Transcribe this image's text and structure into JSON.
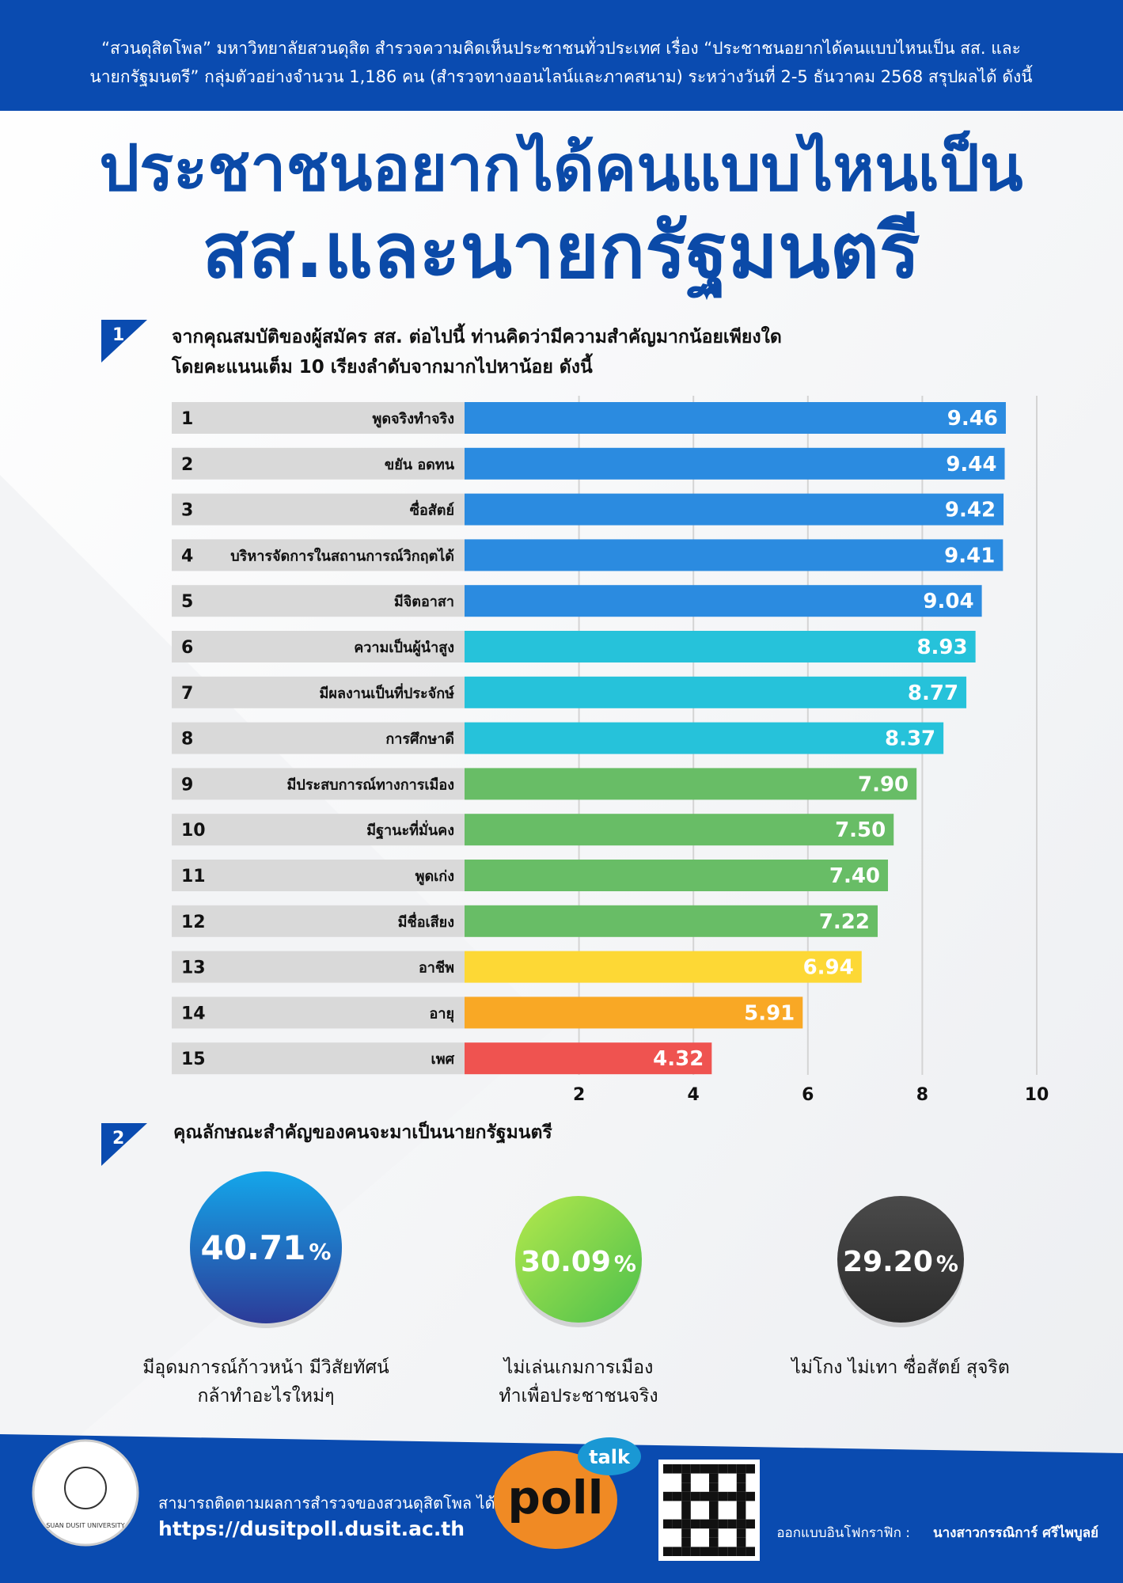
{
  "header": {
    "lines": [
      "“สวนดุสิตโพล” มหาวิทยาลัยสวนดุสิต สำรวจความคิดเห็นประชาชนทั่วประเทศ เรื่อง “ประชาชนอยากได้คนแบบไหนเป็น สส. และ",
      "นายกรัฐมนตรี” กลุ่มตัวอย่างจำนวน 1,186 คน (สำรวจทางออนไลน์และภาคสนาม) ระหว่างวันที่ 2-5 ธันวาคม 2568 สรุปผลได้ ดังนี้"
    ]
  },
  "title": [
    "ประชาชนอยากได้คนแบบไหนเป็น",
    "สส.และนายกรัฐมนตรี"
  ],
  "chart_data": {
    "type": "bar",
    "orientation": "horizontal",
    "number": "1",
    "title": [
      "จากคุณสมบัติของผู้สมัคร สส. ต่อไปนี้ ท่านคิดว่ามีความสำคัญมากน้อยเพียงใด",
      "โดยคะแนนเต็ม 10 เรียงลำดับจากมากไปหาน้อย ดังนี้"
    ],
    "ranks": [
      "1",
      "2",
      "3",
      "4",
      "5",
      "6",
      "7",
      "8",
      "9",
      "10",
      "11",
      "12",
      "13",
      "14",
      "15"
    ],
    "categories": [
      "พูดจริงทำจริง",
      "ขยัน อดทน",
      "ซื่อสัตย์",
      "บริหารจัดการในสถานการณ์วิกฤตได้",
      "มีจิตอาสา",
      "ความเป็นผู้นำสูง",
      "มีผลงานเป็นที่ประจักษ์",
      "การศึกษาดี",
      "มีประสบการณ์ทางการเมือง",
      "มีฐานะที่มั่นคง",
      "พูดเก่ง",
      "มีชื่อเสียง",
      "อาชีพ",
      "อายุ",
      "เพศ"
    ],
    "values": [
      9.46,
      9.44,
      9.42,
      9.41,
      9.04,
      8.93,
      8.77,
      8.37,
      7.9,
      7.5,
      7.4,
      7.22,
      6.94,
      5.91,
      4.32
    ],
    "value_labels": [
      "9.46",
      "9.44",
      "9.42",
      "9.41",
      "9.04",
      "8.93",
      "8.77",
      "8.37",
      "7.90",
      "7.50",
      "7.40",
      "7.22",
      "6.94",
      "5.91",
      "4.32"
    ],
    "colors": [
      "#2b8be0",
      "#2b8be0",
      "#2b8be0",
      "#2b8be0",
      "#2b8be0",
      "#26c2da",
      "#26c2da",
      "#26c2da",
      "#68bd66",
      "#68bd66",
      "#68bd66",
      "#68bd66",
      "#fdd835",
      "#f9a825",
      "#ef5350"
    ],
    "xlim": [
      0,
      10
    ],
    "xticks": [
      2,
      4,
      6,
      8,
      10
    ],
    "grid": true
  },
  "section2": {
    "number": "2",
    "title": "คุณลักษณะสำคัญของคนจะมาเป็นนายกรัฐมนตรี",
    "items": [
      {
        "value": "40.71",
        "unit": "%",
        "caption": [
          "มีอุดมการณ์ก้าวหน้า มีวิสัยทัศน์",
          "กล้าทำอะไรใหม่ๆ"
        ]
      },
      {
        "value": "30.09",
        "unit": "%",
        "caption": [
          "ไม่เล่นเกมการเมือง",
          "ทำเพื่อประชาชนจริง"
        ]
      },
      {
        "value": "29.20",
        "unit": "%",
        "caption": [
          "ไม่โกง ไม่เทา ซื่อสัตย์ สุจริต"
        ]
      }
    ]
  },
  "footer": {
    "university": "SUAN DUSIT UNIVERSITY",
    "follow": "สามารถติดตามผลการสำรวจของสวนดุสิตโพล ได้ที่",
    "url": "https://dusitpoll.dusit.ac.th",
    "logo_poll": "poll",
    "logo_talk": "talk",
    "credit_label": "ออกแบบอินโฟกราฟิก :",
    "credit_name": "นางสาวกรรณิการ์ ศรีไพบูลย์"
  }
}
